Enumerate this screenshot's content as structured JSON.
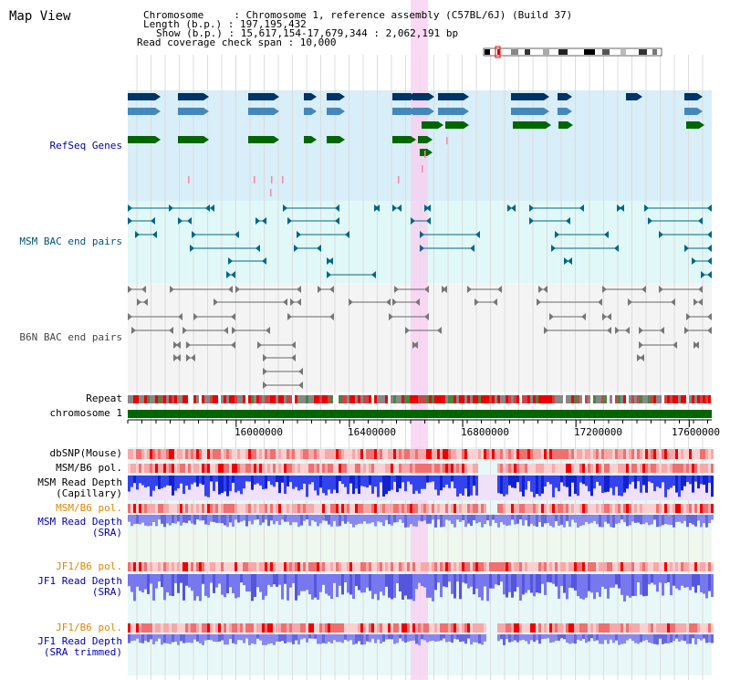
{
  "page": {
    "title": "Map View"
  },
  "header": {
    "chromosome_label": "Chromosome     : Chromosome 1, reference assembly (C57BL/6J) (Build 37)",
    "length_label": "Length (b.p.) : 197,195,432",
    "show_label": "Show (b.p.) : 15,617,154-17,679,344 : 2,062,191 bp",
    "coverage_label": "Read coverage check span : 10,000"
  },
  "tracks": {
    "refseq": "RefSeq Genes",
    "msm_bac": "MSM BAC end pairs",
    "b6n_bac": "B6N BAC end pairs",
    "repeat": "Repeat",
    "chromosome": "chromosome 1",
    "dbsnp": "dbSNP(Mouse)",
    "msm_pol1": "MSM/B6 pol.",
    "msm_cap_1": "MSM Read Depth",
    "msm_cap_2": "(Capillary)",
    "msm_pol2": "MSM/B6 pol.",
    "msm_sra_1": "MSM Read Depth",
    "msm_sra_2": "(SRA)",
    "jf1_pol1": "JF1/B6 pol.",
    "jf1_sra_1": "JF1 Read Depth",
    "jf1_sra_2": "(SRA)",
    "jf1_pol2": "JF1/B6 pol.",
    "jf1_trim_1": "JF1 Read Depth",
    "jf1_trim_2": "(SRA trimmed)"
  },
  "axis": {
    "ticks": [
      "16000000",
      "16400000",
      "16800000",
      "17200000",
      "17600000"
    ],
    "tick_values": [
      16000000,
      16400000,
      16800000,
      17200000,
      17600000
    ],
    "range": [
      15617154,
      17679344
    ]
  },
  "colors": {
    "refseq_bg": "#d8eef8",
    "bac_bg": "#e0f8f8",
    "b6n_bg": "#f4f4f4",
    "highlight": "#f8d0f0",
    "gene_dark": "#003366",
    "gene_mid": "#4488bb",
    "gene_green": "#006600",
    "bac_teal": "#006688",
    "chromosome_green": "#006600"
  }
}
